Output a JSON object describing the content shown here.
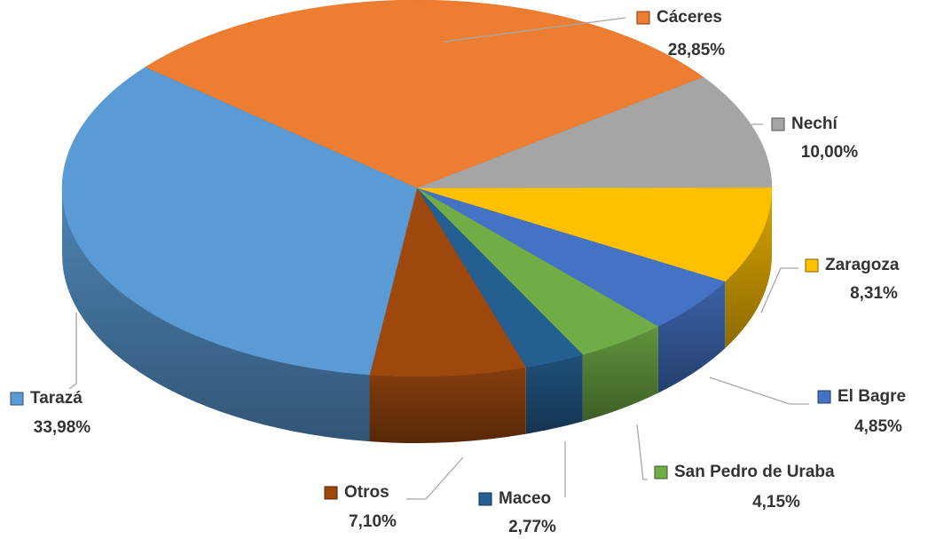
{
  "chart_data": {
    "type": "pie3d",
    "categories": [
      "Cáceres",
      "Nechí",
      "Zaragoza",
      "El Bagre",
      "San Pedro de Uraba",
      "Maceo",
      "Otros",
      "Tarazá"
    ],
    "values": [
      28.85,
      10.0,
      8.31,
      4.85,
      4.15,
      2.77,
      7.1,
      33.98
    ],
    "value_labels": [
      "28,85%",
      "10,00%",
      "8,31%",
      "4,85%",
      "4,15%",
      "2,77%",
      "7,10%",
      "33,98%"
    ],
    "colors": [
      "#ED7D31",
      "#A5A5A5",
      "#FFC000",
      "#4472C4",
      "#70AD47",
      "#255E91",
      "#9E480E",
      "#5B9BD5"
    ]
  }
}
